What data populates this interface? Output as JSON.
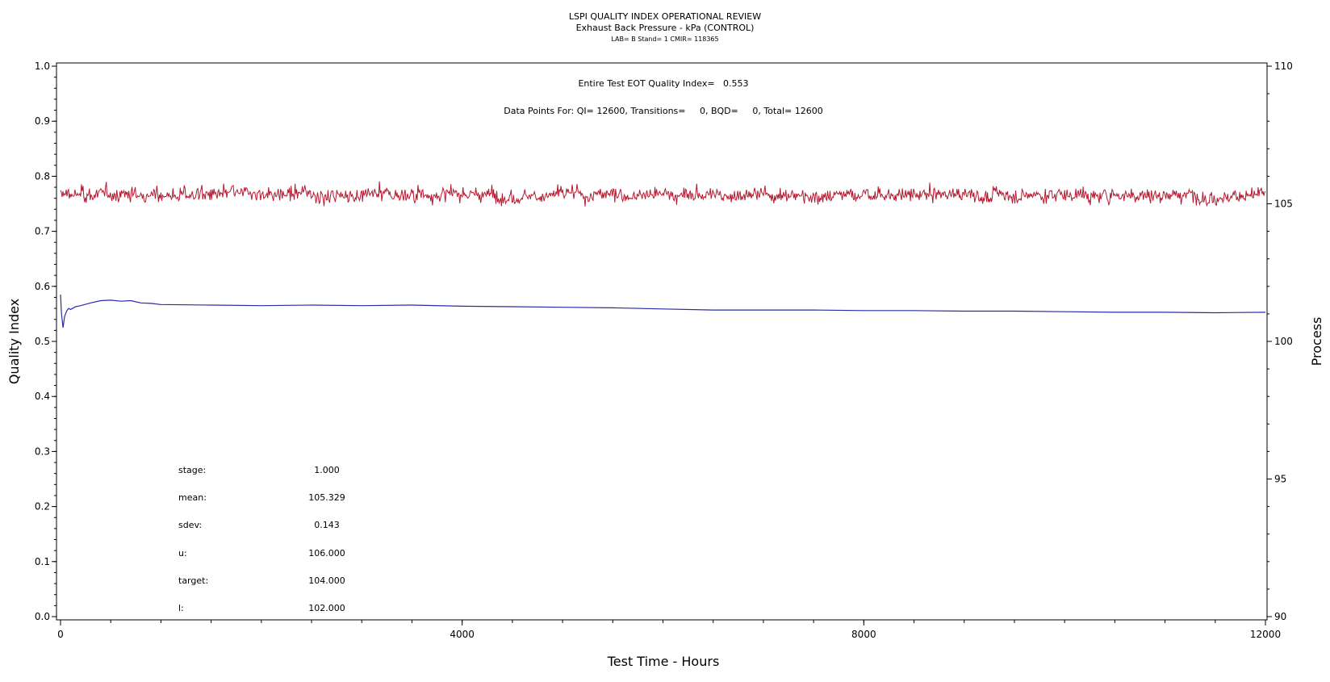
{
  "header": {
    "title": "LSPI QUALITY INDEX OPERATIONAL REVIEW",
    "subtitle": "Exhaust Back Pressure - kPa (CONTROL)",
    "info": "LAB= B Stand= 1 CMIR= 118365"
  },
  "annotations": {
    "quality_index": "Entire Test EOT Quality Index=   0.553",
    "data_points": "Data Points For: QI= 12600, Transitions=     0, BQD=     0, Total= 12600"
  },
  "stats": [
    {
      "label": "stage:",
      "value": "1.000"
    },
    {
      "label": "mean:",
      "value": "105.329"
    },
    {
      "label": "sdev:",
      "value": "0.143"
    },
    {
      "label": "u:",
      "value": "106.000"
    },
    {
      "label": "target:",
      "value": "104.000"
    },
    {
      "label": "l:",
      "value": "102.000"
    }
  ],
  "colors": {
    "process": "#b5192f",
    "quality_index": "#2a2aa8",
    "axis": "#000000"
  },
  "chart_data": {
    "type": "line",
    "xlabel": "Test Time - Hours",
    "ylabel": "Quality Index",
    "y2label": "Process",
    "xlim": [
      0,
      12000
    ],
    "ylim": [
      0.0,
      1.0
    ],
    "y2lim": [
      90,
      110
    ],
    "x_ticks": [
      "0",
      "4000",
      "8000",
      "12000"
    ],
    "y_ticks": [
      "0.0",
      "0.1",
      "0.2",
      "0.3",
      "0.4",
      "0.5",
      "0.6",
      "0.7",
      "0.8",
      "0.9",
      "1.0"
    ],
    "y2_ticks": [
      "90",
      "95",
      "100",
      "105",
      "110"
    ],
    "grid": false,
    "series": [
      {
        "axis": "right",
        "style": "noisy",
        "color": "#b5192f",
        "points": 12600,
        "mean": 105.329,
        "sdev": 0.143,
        "x": [
          0,
          12000
        ]
      },
      {
        "axis": "left",
        "color": "#2a2aa8",
        "x": [
          0,
          10,
          25,
          40,
          60,
          80,
          100,
          150,
          200,
          300,
          400,
          500,
          600,
          700,
          800,
          900,
          1000,
          1500,
          2000,
          2500,
          3000,
          3500,
          4000,
          4500,
          5000,
          5500,
          6000,
          6500,
          7000,
          7500,
          8000,
          8500,
          9000,
          9500,
          10000,
          10500,
          11000,
          11500,
          12000
        ],
        "y": [
          0.585,
          0.55,
          0.525,
          0.545,
          0.555,
          0.56,
          0.558,
          0.563,
          0.565,
          0.57,
          0.574,
          0.575,
          0.573,
          0.574,
          0.57,
          0.569,
          0.567,
          0.566,
          0.565,
          0.566,
          0.565,
          0.566,
          0.564,
          0.563,
          0.562,
          0.561,
          0.559,
          0.557,
          0.557,
          0.557,
          0.556,
          0.556,
          0.555,
          0.555,
          0.554,
          0.553,
          0.553,
          0.552,
          0.553
        ]
      }
    ]
  }
}
